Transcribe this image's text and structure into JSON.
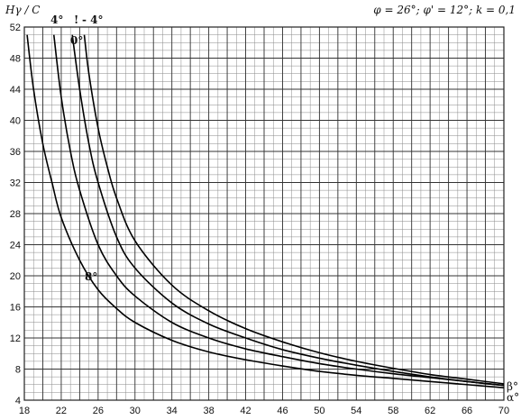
{
  "chart_data": {
    "type": "line",
    "ylabel": "Hγ / C",
    "parameters": "φ = 26°; φ' = 12°; k = 0,1",
    "xlabel": "α°",
    "xlim": [
      18,
      70
    ],
    "ylim": [
      4,
      52
    ],
    "x_ticks": [
      18,
      22,
      26,
      30,
      34,
      38,
      42,
      46,
      50,
      54,
      58,
      62,
      66,
      70
    ],
    "x_tick_labels": [
      "18",
      "22",
      "26",
      "30",
      "34",
      "38",
      "42",
      "46",
      "50",
      "54",
      "58",
      "62",
      "66",
      "70"
    ],
    "y_ticks": [
      4,
      8,
      12,
      16,
      20,
      24,
      28,
      32,
      36,
      40,
      44,
      48,
      52
    ],
    "y_tick_labels": [
      "4",
      "8",
      "12",
      "16",
      "20",
      "24",
      "28",
      "32",
      "36",
      "40",
      "44",
      "48",
      "52"
    ],
    "grid": true,
    "curve_family_label": "β°",
    "series": [
      {
        "name": "8°",
        "x": [
          18.3,
          19,
          20,
          21,
          22,
          24,
          26,
          28,
          30,
          34,
          38,
          42,
          46,
          50,
          54,
          58,
          62,
          66,
          70
        ],
        "y": [
          51,
          44,
          37,
          32,
          27.5,
          22,
          18.2,
          15.8,
          14,
          11.7,
          10.2,
          9.2,
          8.4,
          7.7,
          7.2,
          6.8,
          6.4,
          6.0,
          5.6
        ]
      },
      {
        "name": "4°",
        "x": [
          21.2,
          22,
          23,
          24,
          26,
          28,
          30,
          34,
          38,
          42,
          46,
          50,
          54,
          58,
          62,
          66,
          70
        ],
        "y": [
          51,
          43,
          36,
          31,
          24,
          20,
          17.4,
          14,
          12,
          10.6,
          9.6,
          8.7,
          8.0,
          7.4,
          6.9,
          6.4,
          5.9
        ]
      },
      {
        "name": "0°",
        "x": [
          23.2,
          24,
          25,
          26,
          28,
          30,
          34,
          38,
          42,
          46,
          50,
          54,
          58,
          62,
          66,
          70
        ],
        "y": [
          51,
          44,
          37,
          32,
          25,
          21,
          16.5,
          13.8,
          12,
          10.5,
          9.4,
          8.5,
          7.7,
          7.0,
          6.4,
          5.9
        ]
      },
      {
        "name": "- 4°",
        "x": [
          24.5,
          25,
          26,
          27,
          28,
          30,
          34,
          38,
          42,
          46,
          50,
          54,
          58,
          62,
          66,
          70
        ],
        "y": [
          51,
          46,
          39,
          34,
          30,
          24.5,
          18.8,
          15.5,
          13.2,
          11.5,
          10.1,
          9.0,
          8.1,
          7.3,
          6.7,
          6.1
        ]
      }
    ],
    "curve_labels": [
      {
        "text": "4°",
        "bind": "s4"
      },
      {
        "text": "!",
        "bind": "bang"
      },
      {
        "text": "- 4°",
        "bind": "sm4"
      },
      {
        "text": "0°",
        "bind": "s0"
      },
      {
        "text": "8°",
        "bind": "s8"
      }
    ]
  },
  "labels": {
    "ylabel": "Hγ / C",
    "params": "φ = 26°; φ' = 12°; k = 0,1",
    "beta": "β°",
    "alpha": "α°",
    "s4": "4°",
    "bang": "!",
    "sm4": "- 4°",
    "s0": "0°",
    "s8": "8°"
  }
}
